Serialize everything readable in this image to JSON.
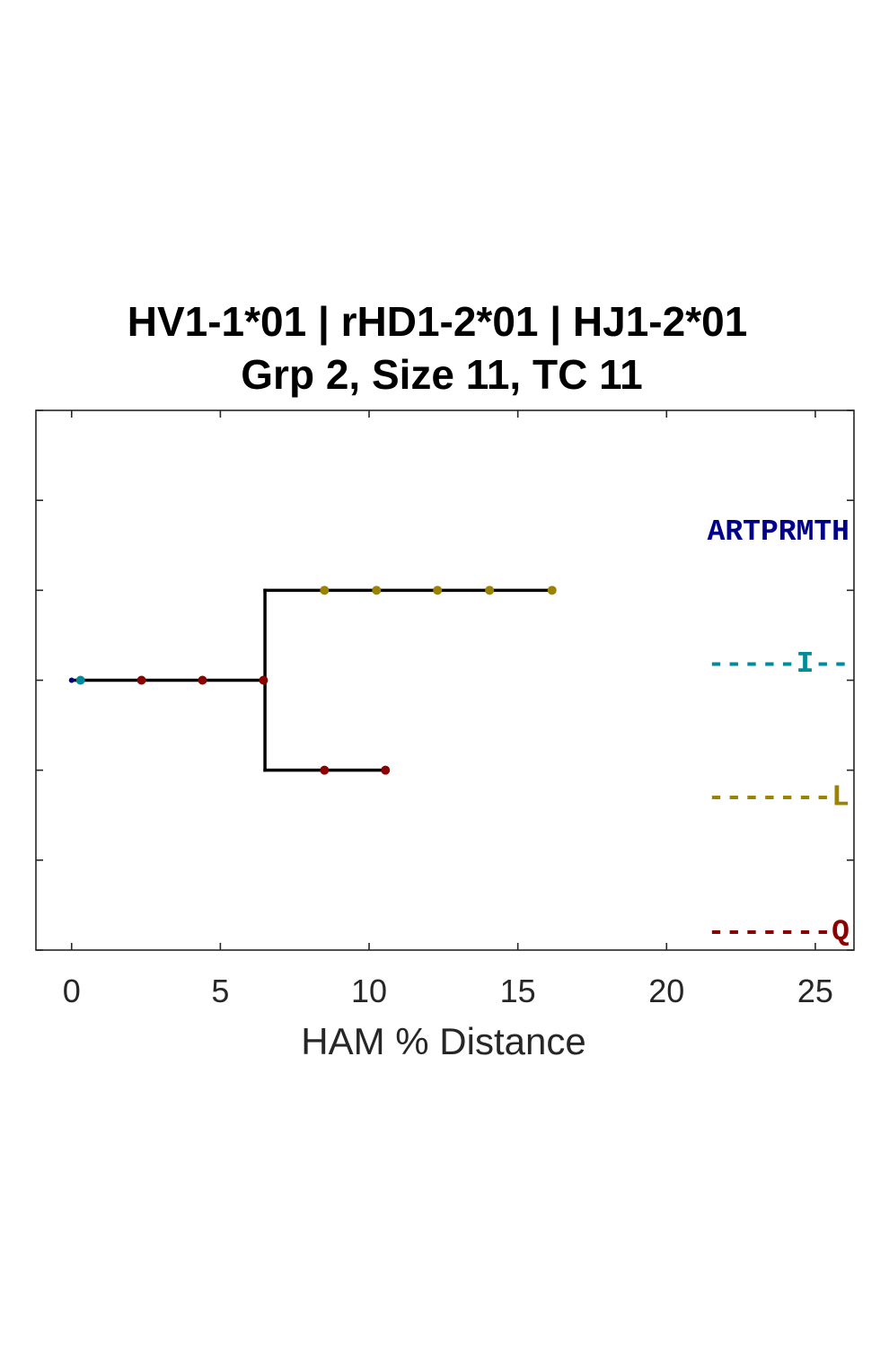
{
  "chart_data": {
    "type": "tree",
    "title_line1": "HV1-1*01 | rHD1-2*01 | HJ1-2*01",
    "title_line2": "Grp 2, Size 11, TC 11",
    "xlabel": "HAM % Distance",
    "xlim": [
      -1.2,
      26.3
    ],
    "ylim": [
      -3,
      3
    ],
    "x_ticks": [
      0,
      5,
      10,
      15,
      20,
      25
    ],
    "x_tick_labels": [
      "0",
      "5",
      "10",
      "15",
      "20",
      "25"
    ],
    "y_ticks": [
      -3,
      -2,
      -1,
      0,
      1,
      2,
      3
    ],
    "grid": false,
    "colors": {
      "branch": "#000000",
      "germline": "#00008b",
      "teal": "#008b9b",
      "olive": "#9b8200",
      "darkred": "#8b0000"
    },
    "branches": [
      {
        "x0": 0,
        "x1": 6.5,
        "y": 0
      },
      {
        "x": 6.5,
        "y0": -1,
        "y1": 1
      },
      {
        "x0": 6.5,
        "x1": 16.2,
        "y": 1
      },
      {
        "x0": 6.5,
        "x1": 10.55,
        "y": -1
      }
    ],
    "nodes": [
      {
        "x": 0,
        "y": 0,
        "color": "germline"
      },
      {
        "x": 0.3,
        "y": 0,
        "color": "teal"
      },
      {
        "x": 2.35,
        "y": 0,
        "color": "darkred"
      },
      {
        "x": 4.4,
        "y": 0,
        "color": "darkred"
      },
      {
        "x": 6.45,
        "y": 0,
        "color": "darkred"
      },
      {
        "x": 8.5,
        "y": 1,
        "color": "olive"
      },
      {
        "x": 10.25,
        "y": 1,
        "color": "olive"
      },
      {
        "x": 12.3,
        "y": 1,
        "color": "olive"
      },
      {
        "x": 14.05,
        "y": 1,
        "color": "olive"
      },
      {
        "x": 16.15,
        "y": 1,
        "color": "olive"
      },
      {
        "x": 8.5,
        "y": -1,
        "color": "darkred"
      },
      {
        "x": 10.55,
        "y": -1,
        "color": "darkred"
      }
    ],
    "sequence_labels": [
      {
        "text": "ARTPRMTH",
        "color": "germline",
        "y": 1.65
      },
      {
        "text": "-----I--",
        "color": "teal",
        "y": 0.18
      },
      {
        "text": "-------L",
        "color": "olive",
        "y": -1.3
      },
      {
        "text": "-------Q",
        "color": "darkred",
        "y": -2.8
      }
    ]
  }
}
